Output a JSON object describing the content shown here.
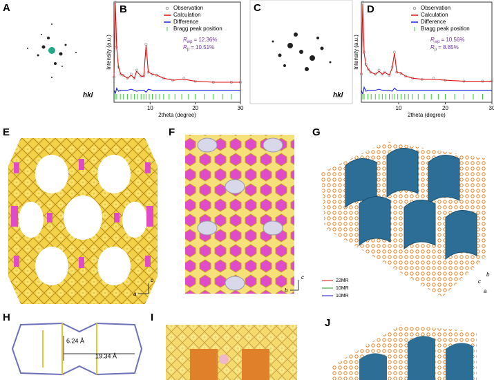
{
  "panel_a": {
    "label": "A",
    "index_label": "hkl"
  },
  "panel_c": {
    "label": "C",
    "index_label": "hkl"
  },
  "chart_data": [
    {
      "type": "line",
      "label": "B",
      "xlabel": "2theta (degree)",
      "ylabel": "Intensity (a.u.)",
      "xlim": [
        2,
        30
      ],
      "xticks": [
        10,
        20,
        30
      ],
      "ylim": [
        0,
        100
      ],
      "x": [
        2,
        2.3,
        2.6,
        3,
        3.5,
        4,
        5,
        5.8,
        6.5,
        7,
        8,
        8.6,
        9.1,
        9.6,
        10.5,
        11.5,
        13,
        15,
        17.5,
        20,
        24,
        28,
        30
      ],
      "series": [
        {
          "name": "Observation",
          "color": "#999999",
          "values": [
            25,
            100,
            55,
            35,
            28,
            27,
            24,
            28,
            24,
            32,
            26,
            26,
            58,
            30,
            28,
            27,
            24,
            22,
            24,
            21,
            20,
            20,
            20
          ]
        },
        {
          "name": "Calculation",
          "color": "#dd1111",
          "values": [
            25,
            99,
            54,
            35,
            28,
            27,
            24,
            27,
            24,
            31,
            26,
            26,
            57,
            30,
            28,
            27,
            24,
            22,
            23,
            21,
            20,
            20,
            20
          ]
        },
        {
          "name": "Difference",
          "color": "#1122dd",
          "values": [
            12,
            9,
            14,
            11,
            12,
            12,
            12,
            13,
            12,
            11,
            12,
            12,
            10,
            13,
            12,
            12,
            12,
            12,
            12,
            12,
            12,
            12,
            12
          ]
        },
        {
          "name": "Bragg peak position",
          "color": "#33cc33",
          "x": [
            2.3,
            2.6,
            3.4,
            4.1,
            5,
            5.8,
            6.5,
            7.2,
            8,
            8.6,
            9.1,
            9.8,
            10.5,
            11.3,
            12.1,
            13,
            14.2,
            15.5,
            17,
            18.5,
            20,
            22,
            24,
            26,
            28
          ]
        }
      ],
      "fit_stats": [
        {
          "symbol": "R",
          "subscript": "wp",
          "value": "= 12.36%"
        },
        {
          "symbol": "R",
          "subscript": "p",
          "value": "= 10.51%"
        }
      ]
    },
    {
      "type": "line",
      "label": "D",
      "xlabel": "2theta (degree)",
      "ylabel": "Intensity (a.u.)",
      "xlim": [
        2,
        30
      ],
      "xticks": [
        10,
        20,
        30
      ],
      "ylim": [
        0,
        100
      ],
      "x": [
        2,
        2.3,
        2.6,
        3,
        3.5,
        4,
        5,
        5.8,
        6.5,
        7,
        8,
        8.6,
        9.1,
        9.6,
        10.5,
        11.5,
        13,
        15,
        17.5,
        20,
        24,
        28,
        30
      ],
      "series": [
        {
          "name": "Observation",
          "color": "#999999",
          "values": [
            28,
            100,
            50,
            38,
            33,
            30,
            28,
            32,
            28,
            30,
            27,
            35,
            50,
            30,
            29,
            26,
            24,
            23,
            24,
            22,
            21,
            21,
            21
          ]
        },
        {
          "name": "Calculation",
          "color": "#dd1111",
          "values": [
            28,
            98,
            49,
            37,
            33,
            30,
            28,
            31,
            28,
            30,
            27,
            34,
            49,
            30,
            29,
            26,
            24,
            23,
            23,
            22,
            21,
            21,
            21
          ]
        },
        {
          "name": "Difference",
          "color": "#1122dd",
          "values": [
            12,
            8,
            15,
            11,
            12,
            12,
            12,
            13,
            12,
            12,
            12,
            11,
            14,
            12,
            12,
            12,
            12,
            12,
            12,
            12,
            12,
            12,
            12
          ]
        },
        {
          "name": "Bragg peak position",
          "color": "#33cc33",
          "x": [
            2.3,
            2.6,
            3.4,
            4.1,
            5,
            5.8,
            6.5,
            7.2,
            8,
            8.6,
            9.1,
            9.8,
            10.5,
            11.3,
            12.1,
            13,
            14.2,
            15.5,
            17,
            18.5,
            20,
            22,
            24,
            26,
            28
          ]
        }
      ],
      "fit_stats": [
        {
          "symbol": "R",
          "subscript": "wp",
          "value": "= 10.56%"
        },
        {
          "symbol": "R",
          "subscript": "p",
          "value": "= 8.85%"
        }
      ]
    }
  ],
  "panel_e": {
    "label": "E",
    "axes": [
      "c",
      "a"
    ]
  },
  "panel_f": {
    "label": "F",
    "axes": [
      "c",
      "b"
    ]
  },
  "panel_g": {
    "label": "G",
    "legend": [
      "22MR",
      "10MR",
      "10MR"
    ],
    "axes": [
      "b",
      "c",
      "a"
    ]
  },
  "panel_h": {
    "label": "H",
    "dimensions": [
      "6.24 Å",
      "19.34 Å"
    ]
  },
  "panel_i": {
    "label": "I"
  },
  "panel_j": {
    "label": "J"
  }
}
